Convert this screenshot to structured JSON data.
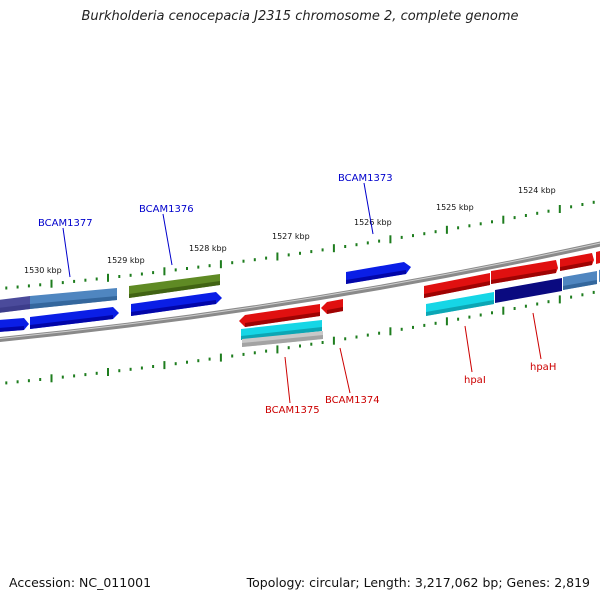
{
  "title": "Burkholderia cenocepacia J2315 chromosome 2, complete genome",
  "footer": {
    "accession": "Accession: NC_011001",
    "summary": "Topology: circular; Length: 3,217,062 bp; Genes: 2,819"
  },
  "ruler": {
    "labels": [
      "1530 kbp",
      "1529 kbp",
      "1528 kbp",
      "1527 kbp",
      "1526 kbp",
      "1525 kbp",
      "1524 kbp"
    ],
    "tick_color": "#1e7d1e"
  },
  "colors": {
    "backbone": "#8a8a8a",
    "forward_label": "#0000cc",
    "reverse_label": "#cc0000"
  },
  "gene_labels": [
    {
      "text": "BCAM1377",
      "strand": "forward"
    },
    {
      "text": "BCAM1376",
      "strand": "forward"
    },
    {
      "text": "BCAM1373",
      "strand": "forward"
    },
    {
      "text": "BCAM1375",
      "strand": "reverse"
    },
    {
      "text": "BCAM1374",
      "strand": "reverse"
    },
    {
      "text": "hpaI",
      "strand": "reverse"
    },
    {
      "text": "hpaH",
      "strand": "reverse"
    }
  ],
  "feature_colors": [
    "#4b4b9b",
    "#4f86c0",
    "#0a1ee6",
    "#5f8a24",
    "#e01010",
    "#16d6e6",
    "#c8c8c8",
    "#0a0a80"
  ]
}
